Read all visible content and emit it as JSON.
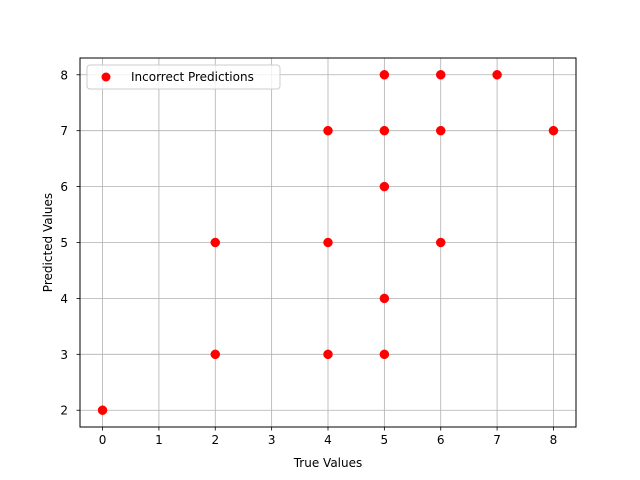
{
  "chart_data": {
    "type": "scatter",
    "title": "",
    "xlabel": "True Values",
    "ylabel": "Predicted Values",
    "xlim": [
      -0.4,
      8.4
    ],
    "ylim": [
      1.7,
      8.3
    ],
    "xticks": [
      0,
      1,
      2,
      3,
      4,
      5,
      6,
      7,
      8
    ],
    "yticks": [
      2,
      3,
      4,
      5,
      6,
      7,
      8
    ],
    "grid": true,
    "legend_position": "top-left",
    "series": [
      {
        "name": "Incorrect Predictions",
        "color": "#ff0000",
        "points": [
          {
            "x": 0,
            "y": 2
          },
          {
            "x": 2,
            "y": 3
          },
          {
            "x": 2,
            "y": 5
          },
          {
            "x": 4,
            "y": 3
          },
          {
            "x": 4,
            "y": 5
          },
          {
            "x": 4,
            "y": 7
          },
          {
            "x": 5,
            "y": 3
          },
          {
            "x": 5,
            "y": 4
          },
          {
            "x": 5,
            "y": 6
          },
          {
            "x": 5,
            "y": 7
          },
          {
            "x": 5,
            "y": 8
          },
          {
            "x": 6,
            "y": 5
          },
          {
            "x": 6,
            "y": 7
          },
          {
            "x": 6,
            "y": 8
          },
          {
            "x": 7,
            "y": 8
          },
          {
            "x": 8,
            "y": 7
          }
        ]
      }
    ]
  }
}
